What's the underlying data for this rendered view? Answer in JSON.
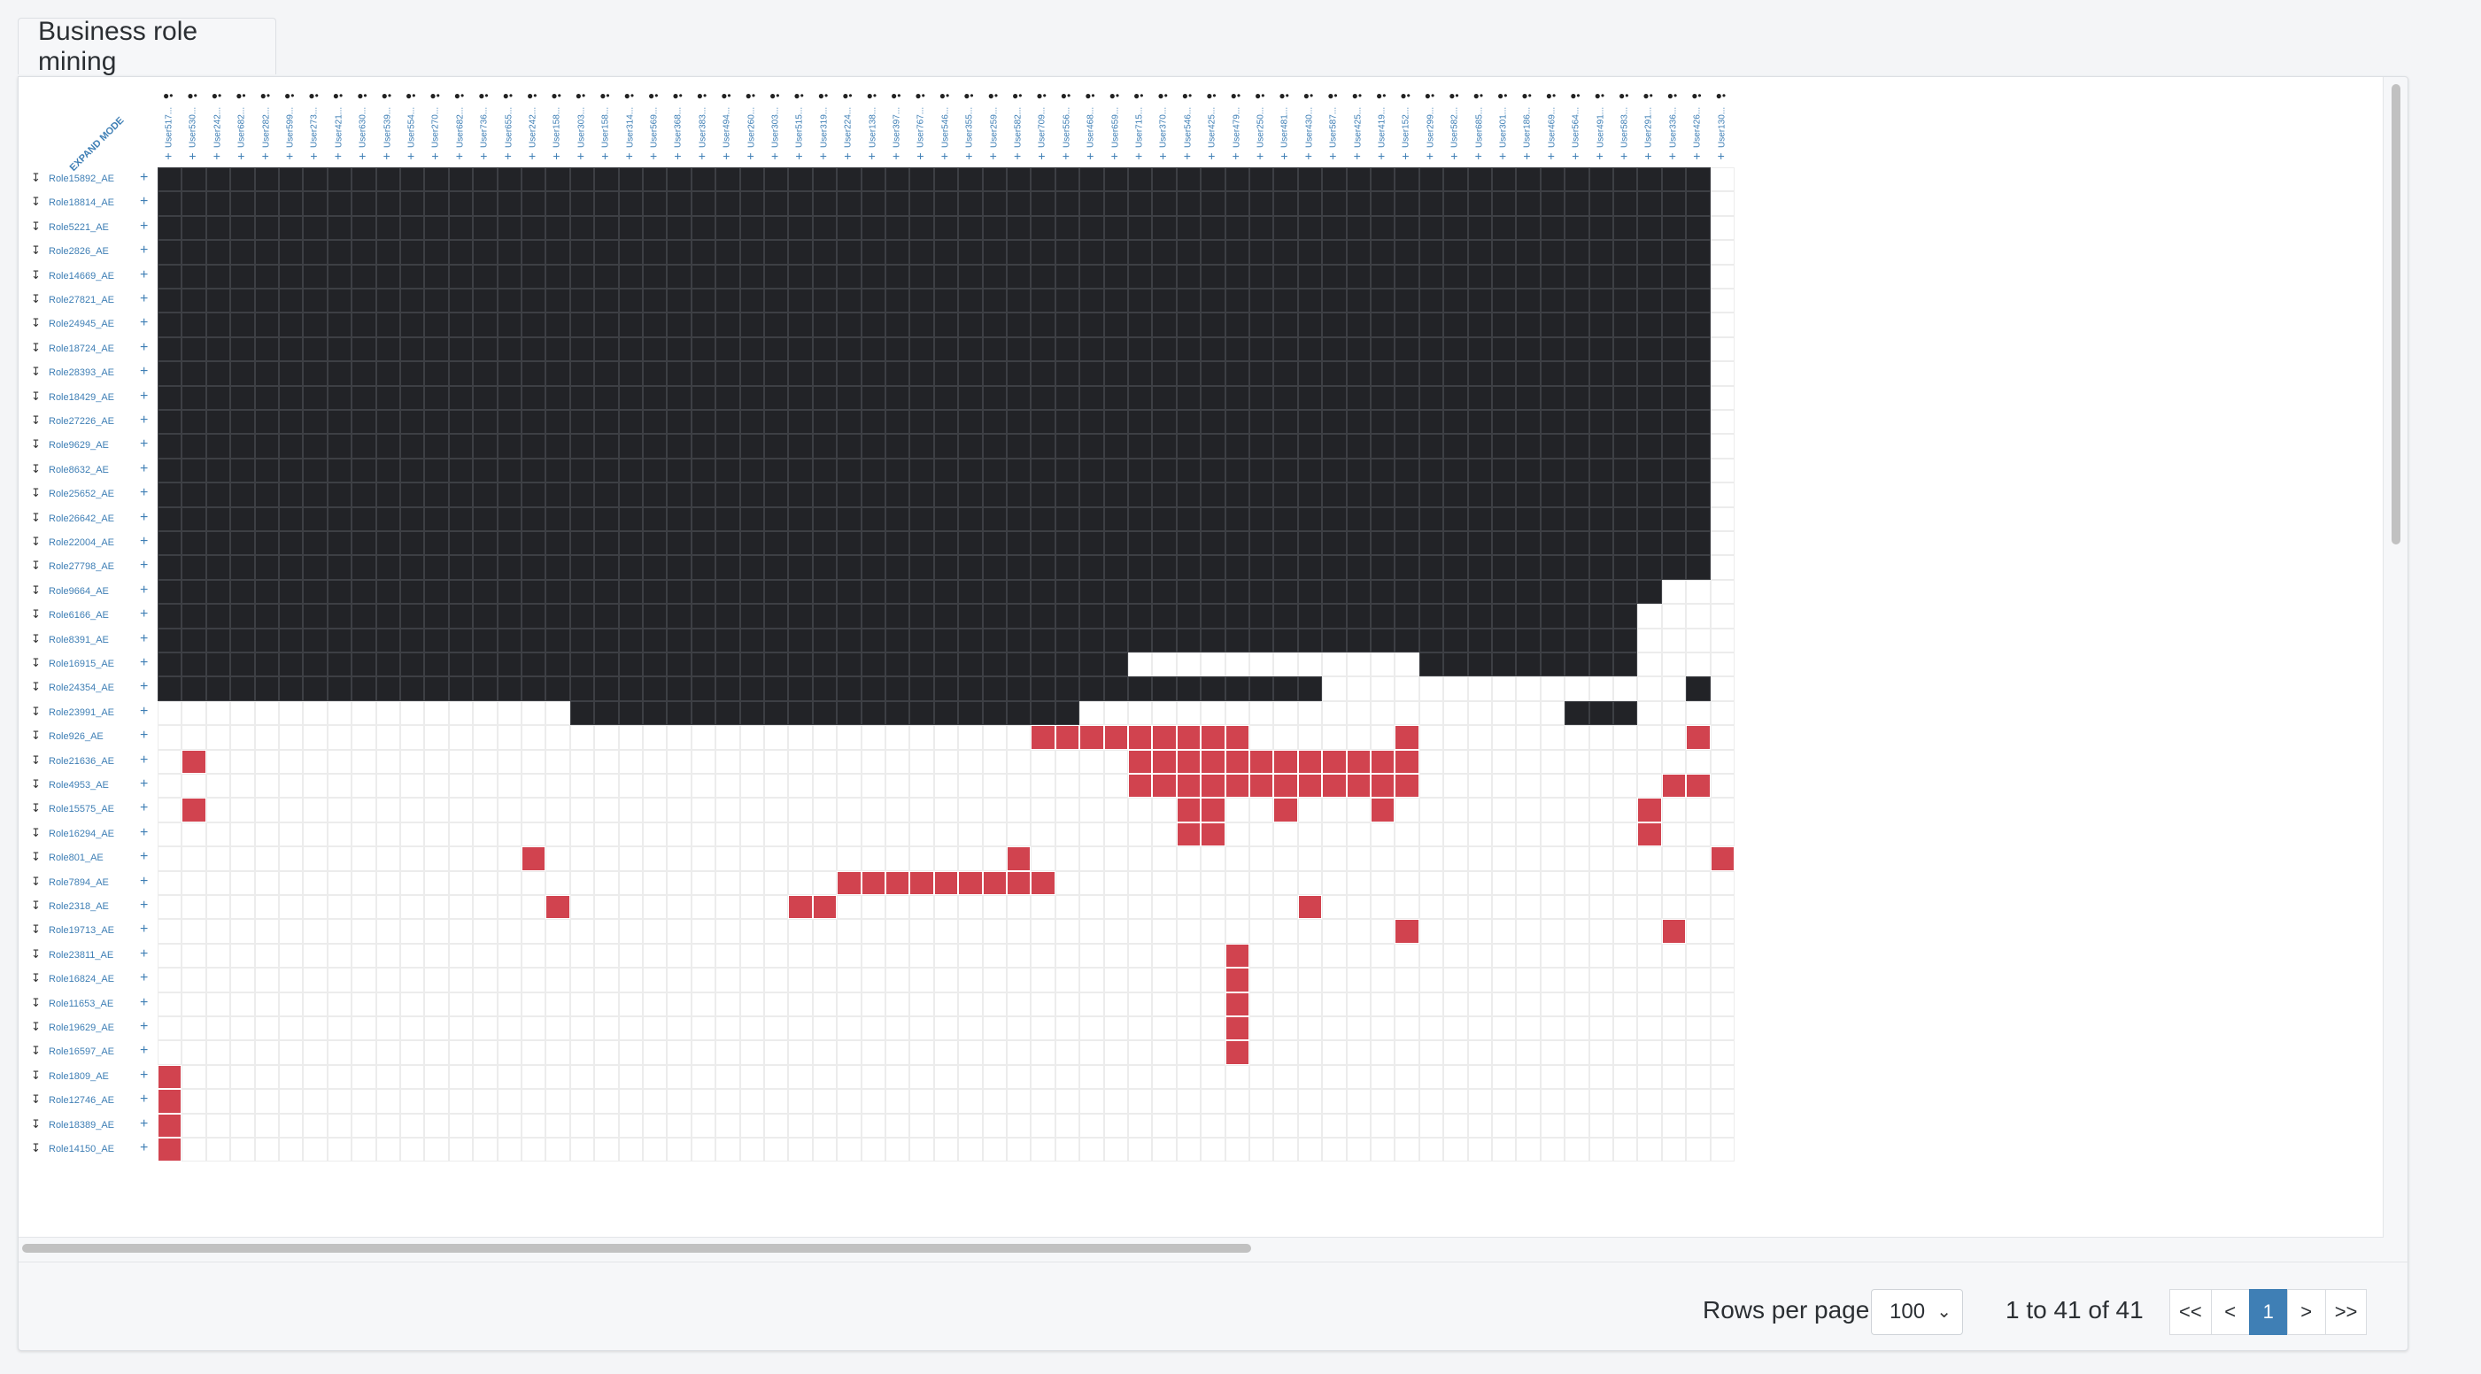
{
  "tab_title": "Business role mining",
  "expand_mode_label": "EXPAND MODE",
  "icons": {
    "column_icon": "people-icon",
    "row_icon": "person-download-icon",
    "add_icon": "plus-icon"
  },
  "colors": {
    "assigned": "#222327",
    "suggested": "#d1434f",
    "accent": "#3f7fb5"
  },
  "users": [
    "User517...",
    "User530...",
    "User242...",
    "User682...",
    "User282...",
    "User599...",
    "User273...",
    "User421...",
    "User630...",
    "User539...",
    "User554...",
    "User270...",
    "User682...",
    "User736...",
    "User655...",
    "User242...",
    "User158...",
    "User303...",
    "User158...",
    "User314...",
    "User569...",
    "User368...",
    "User383...",
    "User494...",
    "User260...",
    "User303...",
    "User515...",
    "User319...",
    "User224...",
    "User138...",
    "User397...",
    "User767...",
    "User546...",
    "User355...",
    "User259...",
    "User582...",
    "User709...",
    "User556...",
    "User468...",
    "User659...",
    "User715...",
    "User370...",
    "User546...",
    "User425...",
    "User479...",
    "User250...",
    "User481...",
    "User430...",
    "User587...",
    "User425...",
    "User419...",
    "User152...",
    "User299...",
    "User582...",
    "User685...",
    "User301...",
    "User186...",
    "User469...",
    "User564...",
    "User491...",
    "User583...",
    "User291...",
    "User336...",
    "User426...",
    "User130..."
  ],
  "roles": [
    "Role15892_AE",
    "Role18814_AE",
    "Role5221_AE",
    "Role2826_AE",
    "Role14669_AE",
    "Role27821_AE",
    "Role24945_AE",
    "Role18724_AE",
    "Role28393_AE",
    "Role18429_AE",
    "Role27226_AE",
    "Role9629_AE",
    "Role8632_AE",
    "Role25652_AE",
    "Role26642_AE",
    "Role22004_AE",
    "Role27798_AE",
    "Role9664_AE",
    "Role6166_AE",
    "Role8391_AE",
    "Role16915_AE",
    "Role24354_AE",
    "Role23991_AE",
    "Role926_AE",
    "Role21636_AE",
    "Role4953_AE",
    "Role15575_AE",
    "Role16294_AE",
    "Role801_AE",
    "Role7894_AE",
    "Role2318_AE",
    "Role19713_AE",
    "Role23811_AE",
    "Role16824_AE",
    "Role11653_AE",
    "Role19629_AE",
    "Role16597_AE",
    "Role1809_AE",
    "Role12746_AE",
    "Role18389_AE",
    "Role14150_AE"
  ],
  "matrix": [
    {
      "black": [
        [
          0,
          64
        ]
      ],
      "red": []
    },
    {
      "black": [
        [
          0,
          64
        ]
      ],
      "red": []
    },
    {
      "black": [
        [
          0,
          64
        ]
      ],
      "red": []
    },
    {
      "black": [
        [
          0,
          64
        ]
      ],
      "red": []
    },
    {
      "black": [
        [
          0,
          64
        ]
      ],
      "red": []
    },
    {
      "black": [
        [
          0,
          64
        ]
      ],
      "red": []
    },
    {
      "black": [
        [
          0,
          64
        ]
      ],
      "red": []
    },
    {
      "black": [
        [
          0,
          64
        ]
      ],
      "red": []
    },
    {
      "black": [
        [
          0,
          64
        ]
      ],
      "red": []
    },
    {
      "black": [
        [
          0,
          64
        ]
      ],
      "red": []
    },
    {
      "black": [
        [
          0,
          64
        ]
      ],
      "red": []
    },
    {
      "black": [
        [
          0,
          64
        ]
      ],
      "red": []
    },
    {
      "black": [
        [
          0,
          64
        ]
      ],
      "red": []
    },
    {
      "black": [
        [
          0,
          64
        ]
      ],
      "red": []
    },
    {
      "black": [
        [
          0,
          64
        ]
      ],
      "red": []
    },
    {
      "black": [
        [
          0,
          64
        ]
      ],
      "red": []
    },
    {
      "black": [
        [
          0,
          64
        ]
      ],
      "red": []
    },
    {
      "black": [
        [
          0,
          62
        ]
      ],
      "red": []
    },
    {
      "black": [
        [
          0,
          61
        ]
      ],
      "red": []
    },
    {
      "black": [
        [
          0,
          61
        ]
      ],
      "red": []
    },
    {
      "black": [
        [
          0,
          40
        ],
        [
          52,
          61
        ]
      ],
      "red": []
    },
    {
      "black": [
        [
          0,
          48
        ],
        [
          63,
          64
        ]
      ],
      "red": []
    },
    {
      "black": [
        [
          17,
          38
        ],
        [
          58,
          61
        ]
      ],
      "red": []
    },
    {
      "black": [],
      "red": [
        [
          36,
          45
        ],
        [
          51,
          52
        ],
        [
          63,
          64
        ]
      ]
    },
    {
      "black": [],
      "red": [
        [
          1,
          2
        ],
        [
          40,
          52
        ]
      ]
    },
    {
      "black": [],
      "red": [
        [
          40,
          52
        ],
        [
          62,
          64
        ]
      ]
    },
    {
      "black": [],
      "red": [
        [
          1,
          2
        ],
        [
          42,
          44
        ],
        [
          46,
          47
        ],
        [
          50,
          51
        ],
        [
          61,
          62
        ]
      ]
    },
    {
      "black": [],
      "red": [
        [
          42,
          44
        ],
        [
          61,
          62
        ]
      ]
    },
    {
      "black": [],
      "red": [
        [
          15,
          16
        ],
        [
          35,
          36
        ],
        [
          64,
          65
        ]
      ]
    },
    {
      "black": [],
      "red": [
        [
          28,
          37
        ]
      ]
    },
    {
      "black": [],
      "red": [
        [
          16,
          17
        ],
        [
          26,
          28
        ],
        [
          47,
          48
        ]
      ]
    },
    {
      "black": [],
      "red": [
        [
          51,
          52
        ],
        [
          62,
          63
        ]
      ]
    },
    {
      "black": [],
      "red": [
        [
          44,
          45
        ]
      ]
    },
    {
      "black": [],
      "red": [
        [
          44,
          45
        ]
      ]
    },
    {
      "black": [],
      "red": [
        [
          44,
          45
        ]
      ]
    },
    {
      "black": [],
      "red": [
        [
          44,
          45
        ]
      ]
    },
    {
      "black": [],
      "red": [
        [
          44,
          45
        ]
      ]
    },
    {
      "black": [],
      "red": [
        [
          0,
          1
        ]
      ]
    },
    {
      "black": [],
      "red": [
        [
          0,
          1
        ]
      ]
    },
    {
      "black": [],
      "red": [
        [
          0,
          1
        ]
      ]
    },
    {
      "black": [],
      "red": [
        [
          0,
          1
        ]
      ]
    }
  ],
  "footer": {
    "rows_per_page_label": "Rows per page",
    "rows_per_page_value": "100",
    "range_text": "1 to 41 of 41",
    "first": "<<",
    "prev": "<",
    "page": "1",
    "next": ">",
    "last": ">>"
  }
}
